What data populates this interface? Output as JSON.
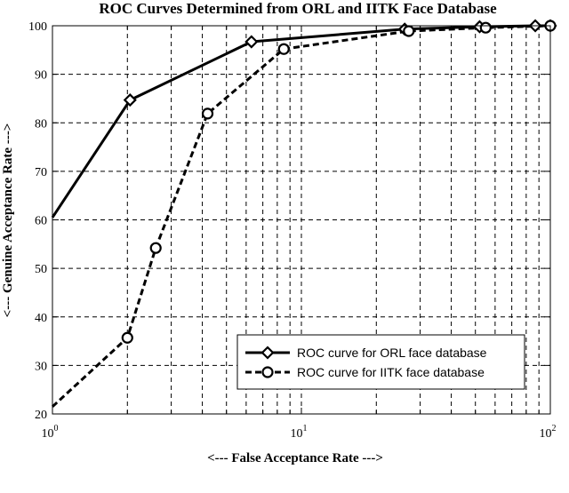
{
  "chart_data": {
    "type": "line",
    "title": "ROC Curves Determined from ORL and IITK Face Database",
    "xlabel": "<--- False Acceptance Rate --->",
    "ylabel": "<--- Genuine Acceptance Rate --->",
    "xscale": "log",
    "xlim": [
      1,
      100
    ],
    "ylim": [
      20,
      100
    ],
    "grid": true,
    "legend_position": "bottom-right",
    "x_major_ticks": [
      {
        "base": "10",
        "exp": "0"
      },
      {
        "base": "10",
        "exp": "1"
      },
      {
        "base": "10",
        "exp": "2"
      }
    ],
    "y_ticks": [
      "20",
      "30",
      "40",
      "50",
      "60",
      "70",
      "80",
      "90",
      "100"
    ],
    "series": [
      {
        "name": "ROC curve for ORL face database",
        "marker": "diamond",
        "line_style": "solid",
        "color": "#000000",
        "x": [
          1.0,
          2.05,
          6.3,
          26.0,
          52.0,
          87.0,
          100.0
        ],
        "y": [
          60.5,
          84.7,
          96.7,
          99.3,
          99.8,
          100.0,
          100.0
        ],
        "marked": [
          false,
          true,
          true,
          true,
          true,
          true,
          true
        ]
      },
      {
        "name": "ROC curve for IITK face database",
        "marker": "circle",
        "line_style": "dashed",
        "color": "#000000",
        "x": [
          1.0,
          2.0,
          2.6,
          4.2,
          8.5,
          27.0,
          55.0,
          100.0
        ],
        "y": [
          21.5,
          35.7,
          54.2,
          81.9,
          95.2,
          98.9,
          99.6,
          100.0
        ],
        "marked": [
          false,
          true,
          true,
          true,
          true,
          true,
          true,
          true
        ]
      }
    ]
  }
}
